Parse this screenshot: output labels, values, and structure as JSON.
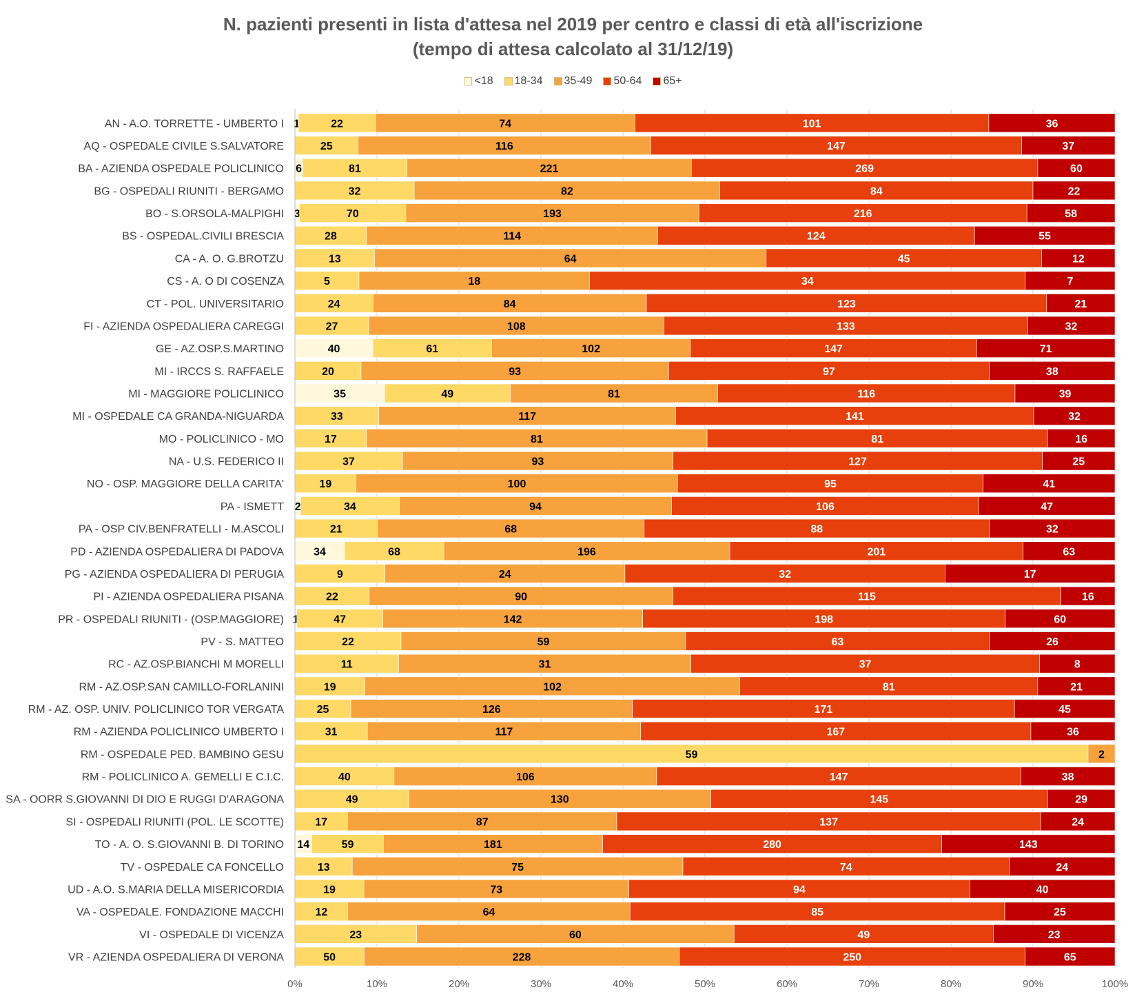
{
  "chart_data": {
    "type": "bar",
    "orientation": "horizontal",
    "stacked": "percent",
    "title": "N. pazienti presenti in lista d'attesa nel 2019 per centro e classi di età all'iscrizione",
    "subtitle": "(tempo di attesa calcolato al 31/12/19)",
    "legend_position": "top",
    "grid": true,
    "xlim": [
      0,
      100
    ],
    "x_ticks": [
      "0%",
      "10%",
      "20%",
      "30%",
      "40%",
      "50%",
      "60%",
      "70%",
      "80%",
      "90%",
      "100%"
    ],
    "categories": [
      "AN  -  A.O. TORRETTE - UMBERTO I",
      "AQ  -  OSPEDALE CIVILE S.SALVATORE",
      "BA  -  AZIENDA OSPEDALE POLICLINICO",
      "BG  -  OSPEDALI RIUNITI - BERGAMO",
      "BO  -  S.ORSOLA-MALPIGHI",
      "BS  -  OSPEDAL.CIVILI BRESCIA",
      "CA  -  A. O. G.BROTZU",
      "CS  -  A. O DI COSENZA",
      "CT  -  POL. UNIVERSITARIO",
      "FI  -  AZIENDA OSPEDALIERA CAREGGI",
      "GE  -  AZ.OSP.S.MARTINO",
      "MI  -  IRCCS S. RAFFAELE",
      "MI  -  MAGGIORE POLICLINICO",
      "MI  -  OSPEDALE CA GRANDA-NIGUARDA",
      "MO  -  POLICLINICO - MO",
      "NA  -  U.S. FEDERICO II",
      "NO  -  OSP. MAGGIORE DELLA CARITA'",
      "PA  -  ISMETT",
      "PA  -  OSP CIV.BENFRATELLI - M.ASCOLI",
      "PD  -  AZIENDA OSPEDALIERA DI PADOVA",
      "PG  -  AZIENDA OSPEDALIERA DI PERUGIA",
      "PI  -  AZIENDA OSPEDALIERA PISANA",
      "PR  -  OSPEDALI RIUNITI - (OSP.MAGGIORE)",
      "PV  -  S. MATTEO",
      "RC  -  AZ.OSP.BIANCHI M MORELLI",
      "RM  -  AZ.OSP.SAN CAMILLO-FORLANINI",
      "RM  -  AZ. OSP. UNIV. POLICLINICO TOR VERGATA",
      "RM  -  AZIENDA POLICLINICO UMBERTO I",
      "RM  -  OSPEDALE PED. BAMBINO GESU",
      "RM  -  POLICLINICO A. GEMELLI E C.I.C.",
      "SA - OORR S.GIOVANNI DI DIO E RUGGI D'ARAGONA",
      "SI  -  OSPEDALI RIUNITI (POL. LE SCOTTE)",
      "TO  -  A. O. S.GIOVANNI B. DI TORINO",
      "TV  -  OSPEDALE CA FONCELLO",
      "UD  - A.O. S.MARIA DELLA MISERICORDIA",
      "VA  -  OSPEDALE. FONDAZIONE MACCHI",
      "VI  -  OSPEDALE DI VICENZA",
      "VR  -  AZIENDA OSPEDALIERA DI VERONA"
    ],
    "series": [
      {
        "name": "<18",
        "color": "#FFF8DC",
        "values": [
          1,
          0,
          6,
          0,
          3,
          0,
          0,
          0,
          0,
          0,
          40,
          0,
          35,
          0,
          0,
          0,
          0,
          2,
          0,
          34,
          0,
          0,
          1,
          0,
          0,
          0,
          0,
          0,
          0,
          0,
          0,
          0,
          14,
          0,
          0,
          0,
          0,
          0
        ]
      },
      {
        "name": "18-34",
        "color": "#FFD966",
        "values": [
          22,
          25,
          81,
          32,
          70,
          28,
          13,
          5,
          24,
          27,
          61,
          20,
          49,
          33,
          17,
          37,
          19,
          34,
          21,
          68,
          9,
          22,
          47,
          22,
          11,
          19,
          25,
          31,
          59,
          40,
          49,
          17,
          59,
          13,
          19,
          12,
          23,
          50
        ]
      },
      {
        "name": "35-49",
        "color": "#F7A23C",
        "values": [
          74,
          116,
          221,
          82,
          193,
          114,
          64,
          18,
          84,
          108,
          102,
          93,
          81,
          117,
          81,
          93,
          100,
          94,
          68,
          196,
          24,
          90,
          142,
          59,
          31,
          102,
          126,
          117,
          2,
          106,
          130,
          87,
          181,
          75,
          73,
          64,
          60,
          228
        ]
      },
      {
        "name": "50-64",
        "color": "#E8400C",
        "values": [
          101,
          147,
          269,
          84,
          216,
          124,
          45,
          34,
          123,
          133,
          147,
          97,
          116,
          141,
          81,
          127,
          95,
          106,
          88,
          201,
          32,
          115,
          198,
          63,
          37,
          81,
          171,
          167,
          0,
          147,
          145,
          137,
          280,
          74,
          94,
          85,
          49,
          250
        ]
      },
      {
        "name": "65+",
        "color": "#C00000",
        "values": [
          36,
          37,
          60,
          22,
          58,
          55,
          12,
          7,
          21,
          32,
          71,
          38,
          39,
          32,
          16,
          25,
          41,
          47,
          32,
          63,
          17,
          16,
          60,
          26,
          8,
          21,
          45,
          36,
          0,
          38,
          29,
          24,
          143,
          24,
          40,
          25,
          23,
          65
        ]
      }
    ],
    "series_label_colors": [
      "#000000",
      "#000000",
      "#000000",
      "#ffffff",
      "#ffffff"
    ],
    "bambino_gesu_note": ""
  }
}
